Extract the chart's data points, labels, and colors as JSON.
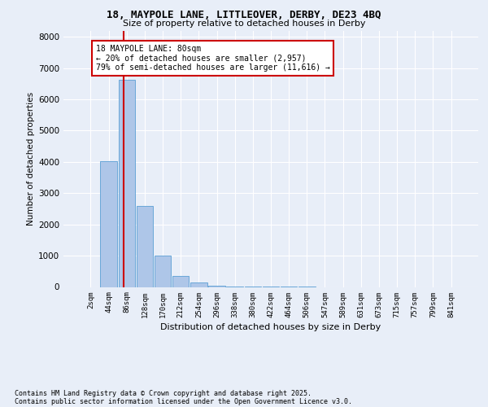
{
  "title_line1": "18, MAYPOLE LANE, LITTLEOVER, DERBY, DE23 4BQ",
  "title_line2": "Size of property relative to detached houses in Derby",
  "xlabel": "Distribution of detached houses by size in Derby",
  "ylabel": "Number of detached properties",
  "footnote1": "Contains HM Land Registry data © Crown copyright and database right 2025.",
  "footnote2": "Contains public sector information licensed under the Open Government Licence v3.0.",
  "annotation_line1": "18 MAYPOLE LANE: 80sqm",
  "annotation_line2": "← 20% of detached houses are smaller (2,957)",
  "annotation_line3": "79% of semi-detached houses are larger (11,616) →",
  "bar_labels": [
    "2sqm",
    "44sqm",
    "86sqm",
    "128sqm",
    "170sqm",
    "212sqm",
    "254sqm",
    "296sqm",
    "338sqm",
    "380sqm",
    "422sqm",
    "464sqm",
    "506sqm",
    "547sqm",
    "589sqm",
    "631sqm",
    "673sqm",
    "715sqm",
    "757sqm",
    "799sqm",
    "841sqm"
  ],
  "bar_values": [
    0,
    4020,
    6620,
    2600,
    1000,
    350,
    155,
    50,
    15,
    5,
    3,
    2,
    1,
    0,
    0,
    0,
    0,
    0,
    0,
    0,
    0
  ],
  "bar_color": "#aec6e8",
  "bar_edge_color": "#5a9fd4",
  "red_line_x": 1.82,
  "ylim": [
    0,
    8200
  ],
  "yticks": [
    0,
    1000,
    2000,
    3000,
    4000,
    5000,
    6000,
    7000,
    8000
  ],
  "annotation_box_color": "#ffffff",
  "annotation_box_edge_color": "#cc0000",
  "red_line_color": "#cc0000",
  "background_color": "#e8eef8",
  "grid_color": "#ffffff"
}
